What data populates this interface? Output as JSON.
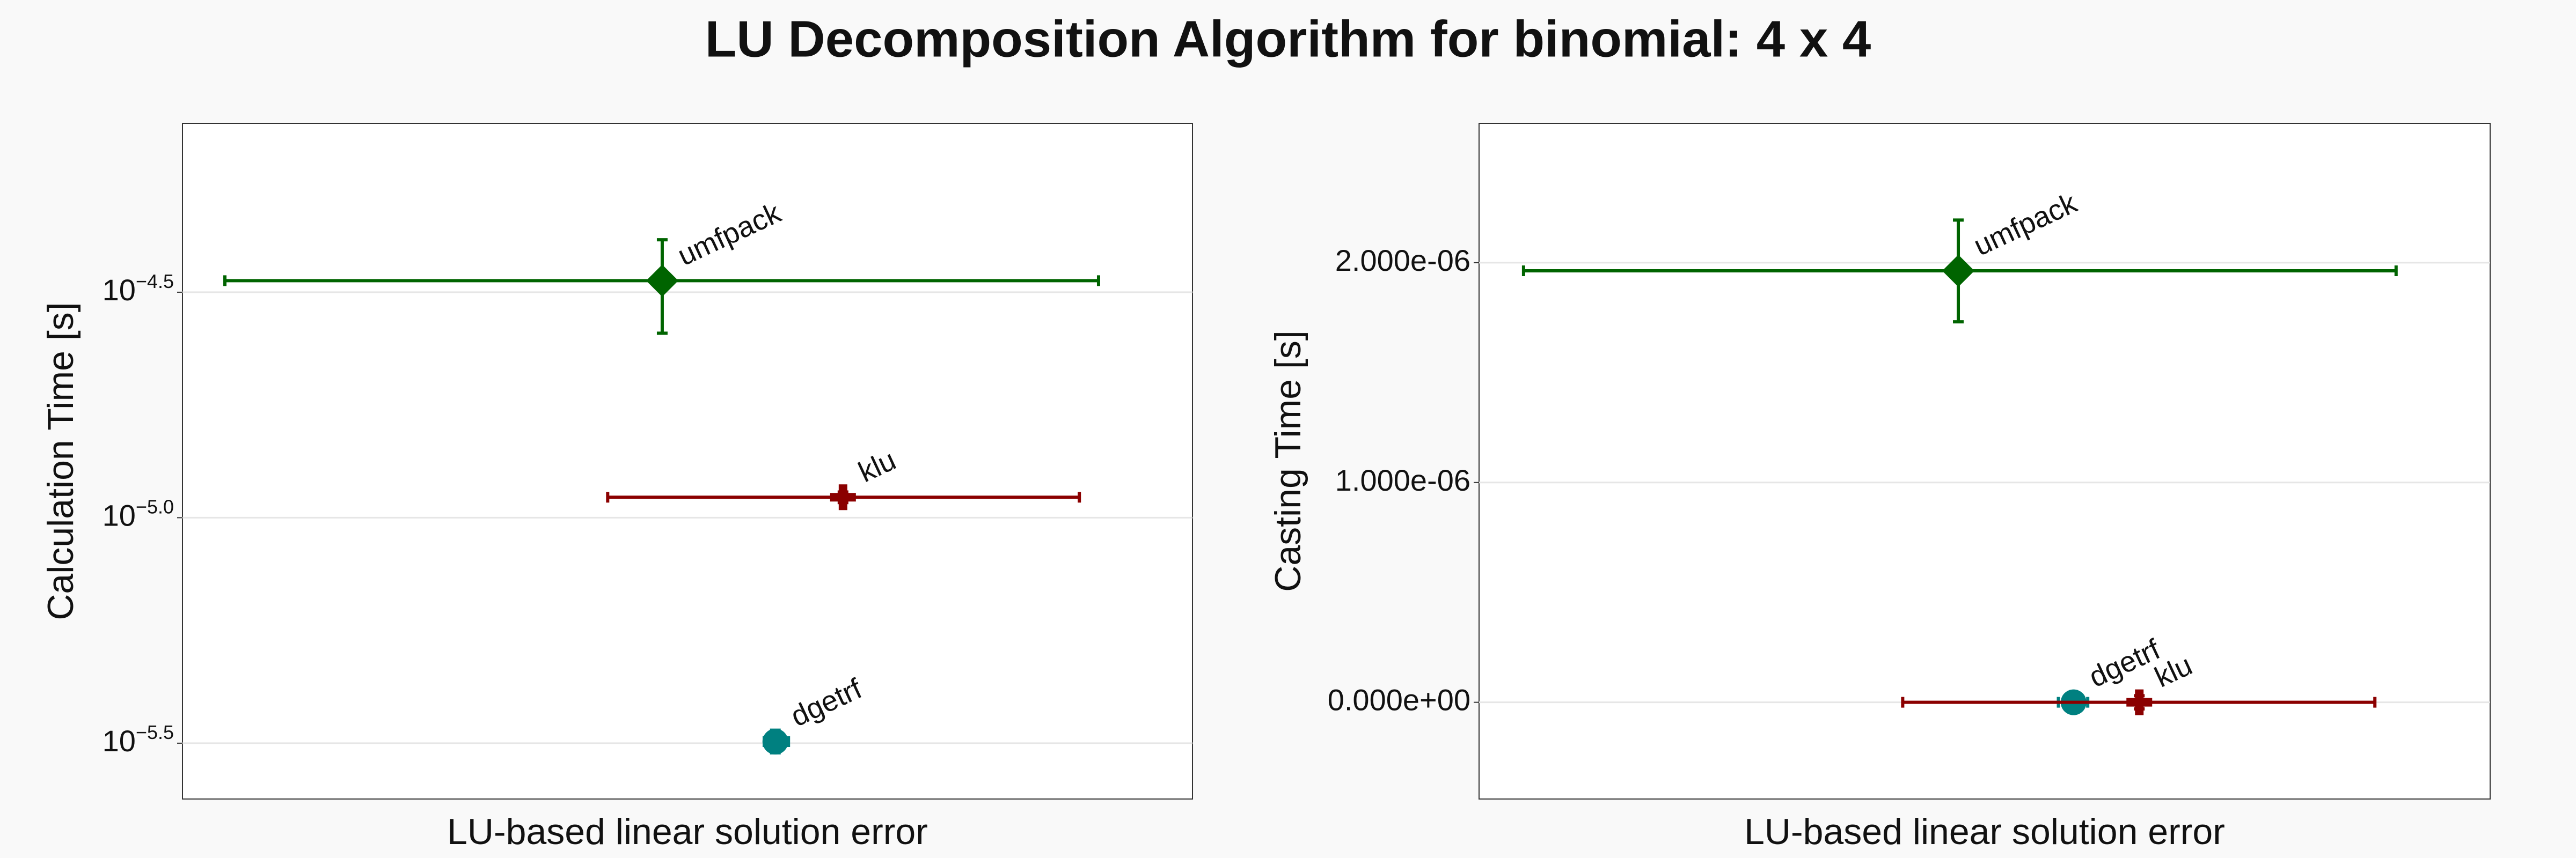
{
  "title": "LU Decomposition Algorithm for binomial: 4 x 4",
  "chart_data": [
    {
      "type": "scatter",
      "log_y": true,
      "grid": true,
      "xlabel": "LU-based linear solution error",
      "ylabel": "Calculation Time [s]",
      "xlim": [
        0,
        1
      ],
      "ylim": [
        2.378e-06,
        7.49e-05
      ],
      "yticks": [
        {
          "value": 3.1623e-05,
          "label": "10",
          "exponent": "−4.5"
        },
        {
          "value": 1e-05,
          "label": "10",
          "exponent": "−5.0"
        },
        {
          "value": 3.1623e-06,
          "label": "10",
          "exponent": "−5.5"
        }
      ],
      "series": [
        {
          "name": "umfpack",
          "color": "#006400",
          "marker": "diamond",
          "x": [
            0.475
          ],
          "values": [
            3.354e-05
          ],
          "xlow": [
            0.042
          ],
          "xhigh": [
            0.907
          ],
          "ylow": [
            2.565e-05
          ],
          "yhigh": [
            4.133e-05
          ]
        },
        {
          "name": "klu",
          "color": "#8b0000",
          "marker": "cross",
          "x": [
            0.654
          ],
          "values": [
            1.11e-05
          ],
          "xlow": [
            0.421
          ],
          "xhigh": [
            0.888
          ],
          "ylow": [
            1.08e-05
          ],
          "yhigh": [
            1.14e-05
          ]
        },
        {
          "name": "dgetrf",
          "color": "#008080",
          "marker": "circle",
          "x": [
            0.587
          ],
          "values": [
            3.188e-06
          ],
          "xlow": [
            0.576
          ],
          "xhigh": [
            0.6
          ],
          "ylow": [
            3.01e-06
          ],
          "yhigh": [
            3.38e-06
          ]
        }
      ]
    },
    {
      "type": "scatter",
      "log_y": false,
      "grid": true,
      "xlabel": "LU-based linear solution error",
      "ylabel": "Casting Time [s]",
      "xlim": [
        0,
        1
      ],
      "ylim": [
        -4.4e-07,
        2.634e-06
      ],
      "yticks": [
        {
          "value": 0,
          "label": "0.000e+00"
        },
        {
          "value": 1e-06,
          "label": "1.000e-06"
        },
        {
          "value": 2e-06,
          "label": "2.000e-06"
        }
      ],
      "series": [
        {
          "name": "umfpack",
          "color": "#006400",
          "marker": "diamond",
          "x": [
            0.474
          ],
          "values": [
            1.963e-06
          ],
          "xlow": [
            0.044
          ],
          "xhigh": [
            0.907
          ],
          "ylow": [
            1.731e-06
          ],
          "yhigh": [
            2.194e-06
          ]
        },
        {
          "name": "dgetrf",
          "color": "#008080",
          "marker": "circle",
          "x": [
            0.588
          ],
          "values": [
            0
          ],
          "xlow": [
            0.573
          ],
          "xhigh": [
            0.602
          ],
          "ylow": [
            -2e-08
          ],
          "yhigh": [
            2e-08
          ]
        },
        {
          "name": "klu",
          "color": "#8b0000",
          "marker": "cross",
          "x": [
            0.653
          ],
          "values": [
            0
          ],
          "xlow": [
            0.419
          ],
          "xhigh": [
            0.886
          ],
          "ylow": [
            -3e-08
          ],
          "yhigh": [
            3e-08
          ]
        }
      ]
    }
  ]
}
